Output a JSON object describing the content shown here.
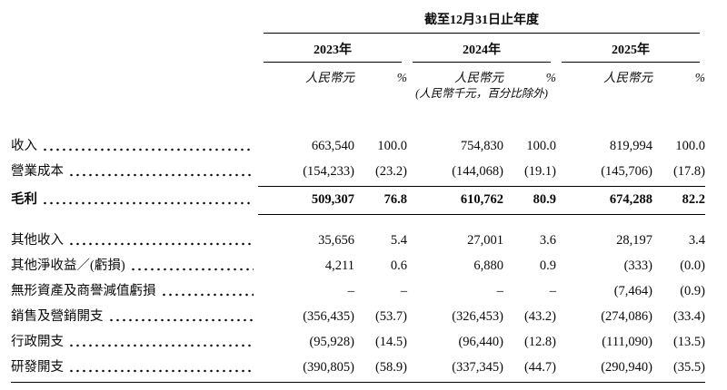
{
  "colors": {
    "background": "#ffffff",
    "text": "#0a0a0a",
    "rule": "#000000"
  },
  "table": {
    "period_header": "截至12月31日止年度",
    "unit_note": "(人民幣千元，百分比除外)",
    "year_groups": [
      {
        "year": "2023年",
        "unit": "人民幣元",
        "pct": "%"
      },
      {
        "year": "2024年",
        "unit": "人民幣元",
        "pct": "%"
      },
      {
        "year": "2025年",
        "unit": "人民幣元",
        "pct": "%"
      }
    ],
    "rows": [
      {
        "label": "收入",
        "values": [
          "663,540",
          "100.0",
          "754,830",
          "100.0",
          "819,994",
          "100.0"
        ]
      },
      {
        "label": "營業成本",
        "values": [
          "(154,233)",
          "(23.2)",
          "(144,068)",
          "(19.1)",
          "(145,706)",
          "(17.8)"
        ]
      },
      {
        "label": "毛利",
        "bold": true,
        "rule_above": true,
        "rule_below": true,
        "values": [
          "509,307",
          "76.8",
          "610,762",
          "80.9",
          "674,288",
          "82.2"
        ]
      },
      {
        "label": "其他收入",
        "gap_above": true,
        "values": [
          "35,656",
          "5.4",
          "27,001",
          "3.6",
          "28,197",
          "3.4"
        ]
      },
      {
        "label": "其他淨收益／(虧損)",
        "values": [
          "4,211",
          "0.6",
          "6,880",
          "0.9",
          "(333)",
          "(0.0)"
        ]
      },
      {
        "label": "無形資產及商譽減值虧損",
        "values": [
          "–",
          "–",
          "–",
          "–",
          "(7,464)",
          "(0.9)"
        ]
      },
      {
        "label": "銷售及營銷開支",
        "values": [
          "(356,435)",
          "(53.7)",
          "(326,453)",
          "(43.2)",
          "(274,086)",
          "(33.4)"
        ]
      },
      {
        "label": "行政開支",
        "values": [
          "(95,928)",
          "(14.5)",
          "(96,440)",
          "(12.8)",
          "(111,090)",
          "(13.5)"
        ]
      },
      {
        "label": "研發開支",
        "values": [
          "(390,805)",
          "(58.9)",
          "(337,345)",
          "(44.7)",
          "(290,940)",
          "(35.5)"
        ]
      }
    ]
  }
}
